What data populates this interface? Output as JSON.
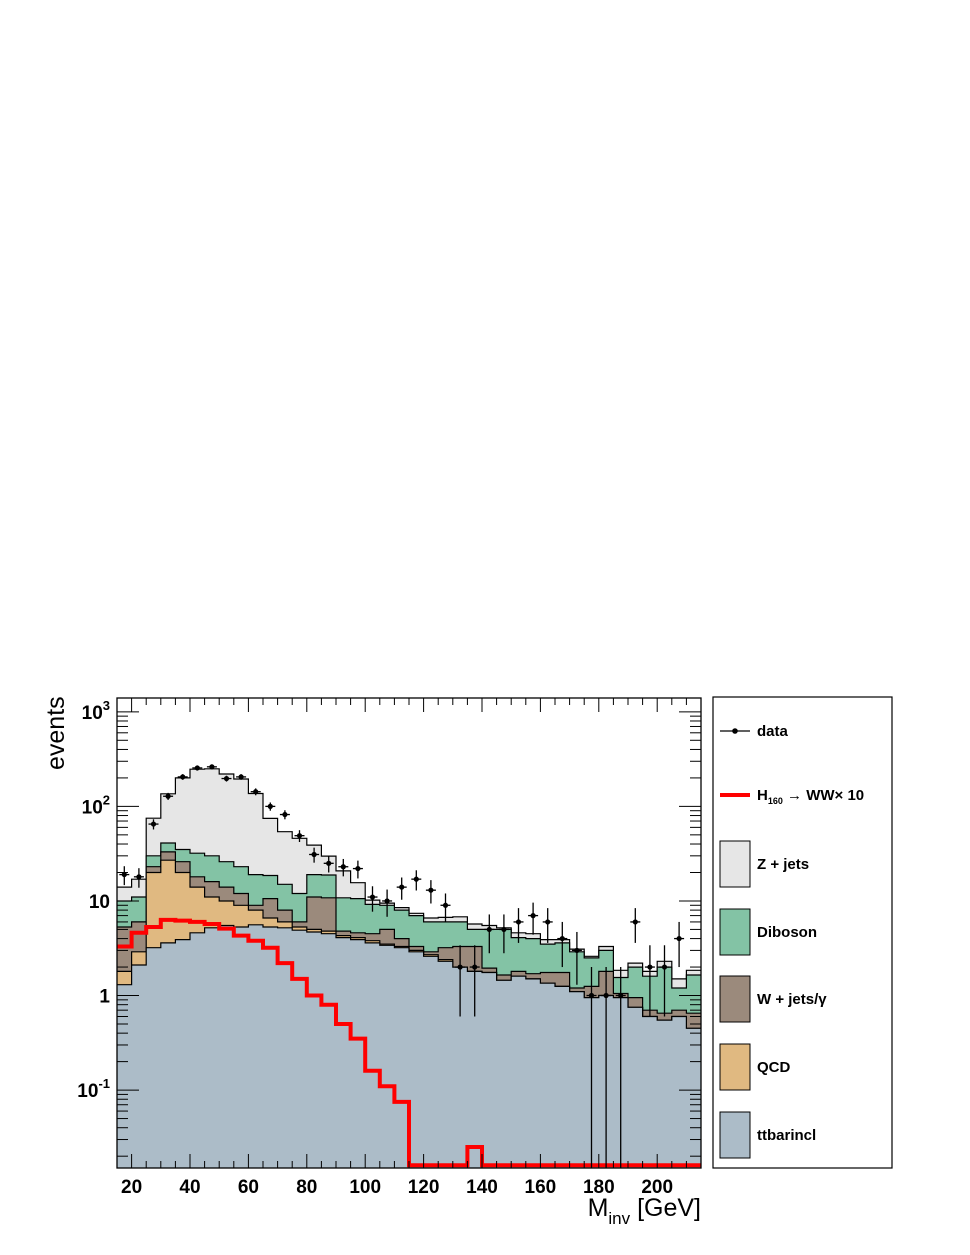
{
  "chart_data": {
    "type": "bar",
    "stacked": true,
    "y_scale": "log",
    "xlim": [
      15,
      215
    ],
    "ylim": [
      0.015,
      1400
    ],
    "xlabel": "M",
    "xlabel_sub": "inv",
    "xlabel_unit": "[GeV]",
    "ylabel": "events",
    "x_ticks": [
      20,
      40,
      60,
      80,
      100,
      120,
      140,
      160,
      180,
      200
    ],
    "x_tick_labels": [
      "20",
      "40",
      "60",
      "80",
      "100",
      "120",
      "140",
      "160",
      "180",
      "200"
    ],
    "y_tick_labels": [
      {
        "value": 1000,
        "base": "10",
        "exp": "3"
      },
      {
        "value": 100,
        "base": "10",
        "exp": "2"
      },
      {
        "value": 10,
        "base": "10",
        "exp": ""
      },
      {
        "value": 1,
        "base": "1",
        "exp": ""
      },
      {
        "value": 0.1,
        "base": "10",
        "exp": "-1"
      }
    ],
    "legend_position": "right",
    "bin_edges": [
      15,
      20,
      25,
      30,
      35,
      40,
      45,
      50,
      55,
      60,
      65,
      70,
      75,
      80,
      85,
      90,
      95,
      100,
      105,
      110,
      115,
      120,
      125,
      130,
      135,
      140,
      145,
      150,
      155,
      160,
      165,
      170,
      175,
      180,
      185,
      190,
      195,
      200,
      205,
      210,
      215
    ],
    "stack": [
      {
        "name": "ttbarincl",
        "color": "#acbcc8",
        "values": [
          1.3,
          2.1,
          3.2,
          3.6,
          3.9,
          4.6,
          5.2,
          5.5,
          5.3,
          5.6,
          5.3,
          5.2,
          4.9,
          4.7,
          4.5,
          4.1,
          3.9,
          3.6,
          3.4,
          3.2,
          2.9,
          2.6,
          2.3,
          2.0,
          1.8,
          1.75,
          1.45,
          1.6,
          1.5,
          1.35,
          1.25,
          1.1,
          0.95,
          1.0,
          0.95,
          0.75,
          0.6,
          0.55,
          0.6,
          0.45
        ]
      },
      {
        "name": "QCD",
        "color": "#e0b981",
        "values": [
          0.5,
          0.8,
          16.8,
          23.4,
          16.1,
          9.4,
          5.8,
          4.5,
          3.7,
          2.4,
          1.3,
          0.8,
          0.4,
          0.3,
          0.3,
          0.2,
          0.2,
          0.2,
          0.1,
          0.1,
          0.1,
          0.1,
          0.1,
          0,
          0,
          0,
          0,
          0,
          0,
          0,
          0,
          0,
          0,
          0,
          0,
          0,
          0,
          0,
          0,
          0
        ]
      },
      {
        "name": "W + jets/γ",
        "color": "#9b8a7c",
        "values": [
          3.5,
          3.1,
          3.0,
          6.0,
          6.0,
          4.0,
          5.0,
          4.0,
          3.0,
          1.0,
          4.0,
          2.0,
          0.7,
          6.0,
          6.0,
          0.5,
          0.5,
          0.7,
          1.5,
          0.7,
          0.3,
          0.2,
          0.8,
          1.3,
          1.5,
          0.2,
          0.2,
          0.2,
          0.2,
          0.4,
          0.5,
          0.1,
          0.3,
          0.8,
          0.1,
          0.2,
          0.1,
          0.1,
          0.1,
          0.2
        ]
      },
      {
        "name": "Diboson",
        "color": "#83c3a5",
        "values": [
          4.7,
          5.0,
          7.0,
          8.0,
          9.0,
          14.0,
          14.0,
          12.0,
          11.0,
          10.0,
          8.0,
          7.0,
          6.0,
          8.0,
          8.0,
          6.0,
          6.0,
          4.7,
          4.0,
          4.0,
          3.7,
          3.1,
          2.8,
          2.7,
          1.7,
          3.05,
          3.35,
          2.3,
          2.3,
          1.75,
          1.85,
          1.7,
          1.25,
          1.2,
          0.5,
          1.05,
          0.9,
          1.35,
          0.5,
          1.0
        ]
      },
      {
        "name": "Z + jets",
        "color": "#e6e6e6",
        "values": [
          4.0,
          6.0,
          45.0,
          95.0,
          165.0,
          215.0,
          220.0,
          194.0,
          172.0,
          118.0,
          56.0,
          39.0,
          34.0,
          20.0,
          11.0,
          10.0,
          5.0,
          1.0,
          0.5,
          0.5,
          0.4,
          0.6,
          0.7,
          0.8,
          0.7,
          0.5,
          0.2,
          0.5,
          0.5,
          0.4,
          0.3,
          0.2,
          0.1,
          0.3,
          0.3,
          0.2,
          0.2,
          0.3,
          0.3,
          0.2
        ]
      }
    ],
    "signal": {
      "name": "H",
      "name_sub": "160",
      "name_rest": " → WW× 10",
      "color": "#ff0000",
      "values": [
        3.3,
        4.6,
        5.3,
        6.3,
        6.2,
        6.0,
        5.7,
        5.1,
        4.3,
        3.8,
        3.2,
        2.2,
        1.5,
        1.0,
        0.8,
        0.5,
        0.35,
        0.16,
        0.11,
        0.075,
        0.016,
        0.016,
        0.016,
        0.016,
        0.025,
        0.016,
        0.016,
        0.016,
        0.016,
        0.016,
        0.016,
        0.016,
        0.016,
        0.016,
        0.016,
        0.016,
        0.016,
        0.016,
        0.016,
        0.016
      ]
    },
    "data": {
      "name": "data",
      "color": "#000000",
      "points": [
        {
          "x": 17.5,
          "y": 19,
          "lo": 14.7,
          "hi": 23.3
        },
        {
          "x": 22.5,
          "y": 18,
          "lo": 13.8,
          "hi": 22.2
        },
        {
          "x": 27.5,
          "y": 65,
          "lo": 57,
          "hi": 73
        },
        {
          "x": 32.5,
          "y": 128,
          "lo": 117,
          "hi": 139
        },
        {
          "x": 37.5,
          "y": 205,
          "lo": 191,
          "hi": 219
        },
        {
          "x": 42.5,
          "y": 255,
          "lo": 239,
          "hi": 271
        },
        {
          "x": 47.5,
          "y": 262,
          "lo": 246,
          "hi": 278
        },
        {
          "x": 52.5,
          "y": 197,
          "lo": 183,
          "hi": 211
        },
        {
          "x": 57.5,
          "y": 205,
          "lo": 191,
          "hi": 219
        },
        {
          "x": 62.5,
          "y": 143,
          "lo": 131,
          "hi": 155
        },
        {
          "x": 67.5,
          "y": 100,
          "lo": 90,
          "hi": 110
        },
        {
          "x": 72.5,
          "y": 82,
          "lo": 73,
          "hi": 91
        },
        {
          "x": 77.5,
          "y": 49,
          "lo": 42,
          "hi": 56
        },
        {
          "x": 82.5,
          "y": 31,
          "lo": 25.4,
          "hi": 36.6
        },
        {
          "x": 87.5,
          "y": 25,
          "lo": 20,
          "hi": 30
        },
        {
          "x": 92.5,
          "y": 23,
          "lo": 18.2,
          "hi": 27.8
        },
        {
          "x": 97.5,
          "y": 22,
          "lo": 17.3,
          "hi": 26.7
        },
        {
          "x": 102.5,
          "y": 11,
          "lo": 7.7,
          "hi": 14.3
        },
        {
          "x": 107.5,
          "y": 10,
          "lo": 6.8,
          "hi": 13.2
        },
        {
          "x": 112.5,
          "y": 14,
          "lo": 10.3,
          "hi": 17.7
        },
        {
          "x": 117.5,
          "y": 17,
          "lo": 12.9,
          "hi": 21.1
        },
        {
          "x": 122.5,
          "y": 13,
          "lo": 9.4,
          "hi": 16.6
        },
        {
          "x": 127.5,
          "y": 9,
          "lo": 6,
          "hi": 12
        },
        {
          "x": 132.5,
          "y": 2,
          "lo": 0.6,
          "hi": 3.4
        },
        {
          "x": 137.5,
          "y": 2,
          "lo": 0.6,
          "hi": 3.4
        },
        {
          "x": 142.5,
          "y": 5,
          "lo": 2.8,
          "hi": 7.2
        },
        {
          "x": 147.5,
          "y": 5,
          "lo": 2.8,
          "hi": 7.2
        },
        {
          "x": 152.5,
          "y": 6,
          "lo": 3.6,
          "hi": 8.4
        },
        {
          "x": 157.5,
          "y": 7,
          "lo": 4.4,
          "hi": 9.6
        },
        {
          "x": 162.5,
          "y": 6,
          "lo": 3.6,
          "hi": 8.4
        },
        {
          "x": 167.5,
          "y": 4,
          "lo": 2,
          "hi": 6
        },
        {
          "x": 172.5,
          "y": 3,
          "lo": 1.3,
          "hi": 4.7
        },
        {
          "x": 177.5,
          "y": 1,
          "lo": 0.015,
          "hi": 2
        },
        {
          "x": 182.5,
          "y": 1,
          "lo": 0.015,
          "hi": 2
        },
        {
          "x": 187.5,
          "y": 1,
          "lo": 0.015,
          "hi": 2
        },
        {
          "x": 192.5,
          "y": 6,
          "lo": 3.6,
          "hi": 8.4
        },
        {
          "x": 197.5,
          "y": 2,
          "lo": 0.6,
          "hi": 3.4
        },
        {
          "x": 202.5,
          "y": 2,
          "lo": 0.6,
          "hi": 3.4
        },
        {
          "x": 207.5,
          "y": 4,
          "lo": 2,
          "hi": 6
        }
      ]
    },
    "legend": [
      {
        "label": "data",
        "kind": "marker",
        "color": "#000000"
      },
      {
        "label": "H",
        "sub": "160",
        "rest": " → WW× 10",
        "kind": "line",
        "color": "#ff0000"
      },
      {
        "label": "Z + jets",
        "kind": "box",
        "color": "#e6e6e6"
      },
      {
        "label": "Diboson",
        "kind": "box",
        "color": "#83c3a5"
      },
      {
        "label": "W + jets/γ",
        "kind": "box",
        "color": "#9b8a7c"
      },
      {
        "label": "QCD",
        "kind": "box",
        "color": "#e0b981"
      },
      {
        "label": "ttbarincl",
        "kind": "box",
        "color": "#acbcc8"
      }
    ]
  }
}
